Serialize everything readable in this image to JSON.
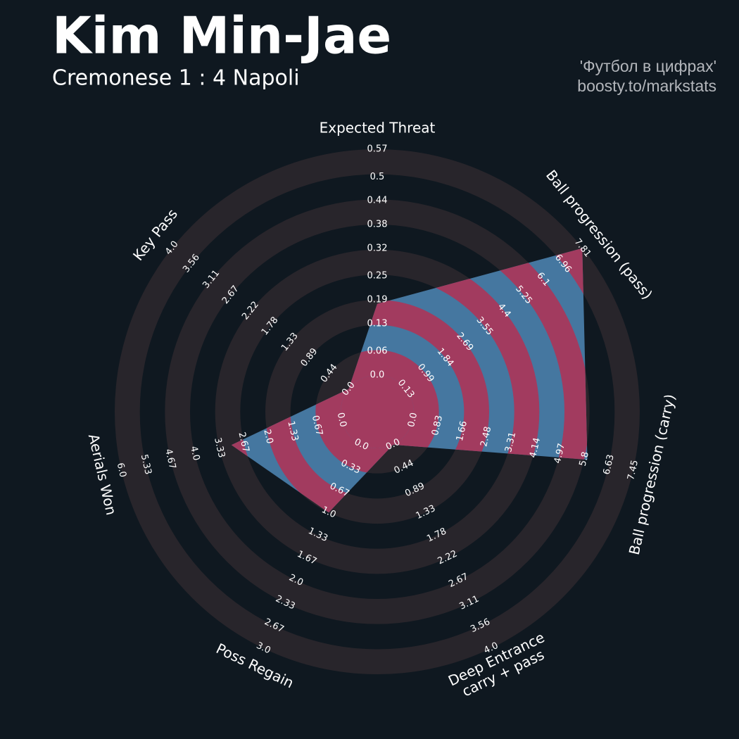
{
  "chart_data": {
    "type": "radar",
    "title": "Kim Min-Jae",
    "subtitle": "Cremonese 1 : 4 Napoli",
    "annotations": [
      "'Футбол в цифрах'",
      "boosty.to/markstats"
    ],
    "categories": [
      "Expected Threat",
      "Ball progression (pass)",
      "Ball progression (carry)",
      "Deep Entrance\ncarry + pass",
      "Poss Regain",
      "Aerials Won",
      "Key Pass"
    ],
    "values": [
      0.18,
      7.8,
      5.9,
      0,
      1,
      3,
      0
    ],
    "ranges": [
      [
        0,
        0.57
      ],
      [
        0.13,
        7.81
      ],
      [
        0,
        7.45
      ],
      [
        0,
        4
      ],
      [
        0,
        3
      ],
      [
        0,
        6
      ],
      [
        0,
        4
      ]
    ],
    "ticks": [
      [
        {
          "value": 0,
          "label": "0.0"
        },
        0.06,
        0.13,
        0.19,
        0.25,
        0.32,
        0.38,
        0.44,
        0.5,
        0.57
      ],
      [
        0.13,
        0.99,
        1.84,
        2.69,
        3.55,
        4.4,
        5.25,
        6.1,
        6.96,
        7.81
      ],
      [
        {
          "value": 0,
          "label": "0.0"
        },
        0.83,
        1.66,
        2.48,
        3.31,
        4.14,
        4.97,
        5.8,
        6.63,
        7.45
      ],
      [
        {
          "value": 0,
          "label": "0.0"
        },
        0.44,
        0.89,
        1.33,
        1.78,
        2.22,
        2.67,
        3.11,
        3.56,
        {
          "value": 4,
          "label": "4.0"
        }
      ],
      [
        {
          "value": 0,
          "label": "0.0"
        },
        0.33,
        0.67,
        {
          "value": 1,
          "label": "1.0"
        },
        1.33,
        1.67,
        {
          "value": 2,
          "label": "2.0"
        },
        2.33,
        2.67,
        {
          "value": 3,
          "label": "3.0"
        }
      ],
      [
        {
          "value": 0,
          "label": "0.0"
        },
        0.67,
        1.33,
        {
          "value": 2,
          "label": "2.0"
        },
        2.67,
        3.33,
        {
          "value": 4,
          "label": "4.0"
        },
        4.67,
        5.33,
        {
          "value": 6,
          "label": "6.0"
        }
      ],
      [
        {
          "value": 0,
          "label": "0.0"
        },
        0.44,
        0.89,
        1.33,
        1.78,
        2.22,
        2.67,
        3.11,
        3.56,
        {
          "value": 4,
          "label": "4.0"
        }
      ]
    ],
    "colors": {
      "background": "#0f1820",
      "ring": "#28252b",
      "fill": "#4577a0",
      "alt_fill": "#a23b5f"
    }
  }
}
